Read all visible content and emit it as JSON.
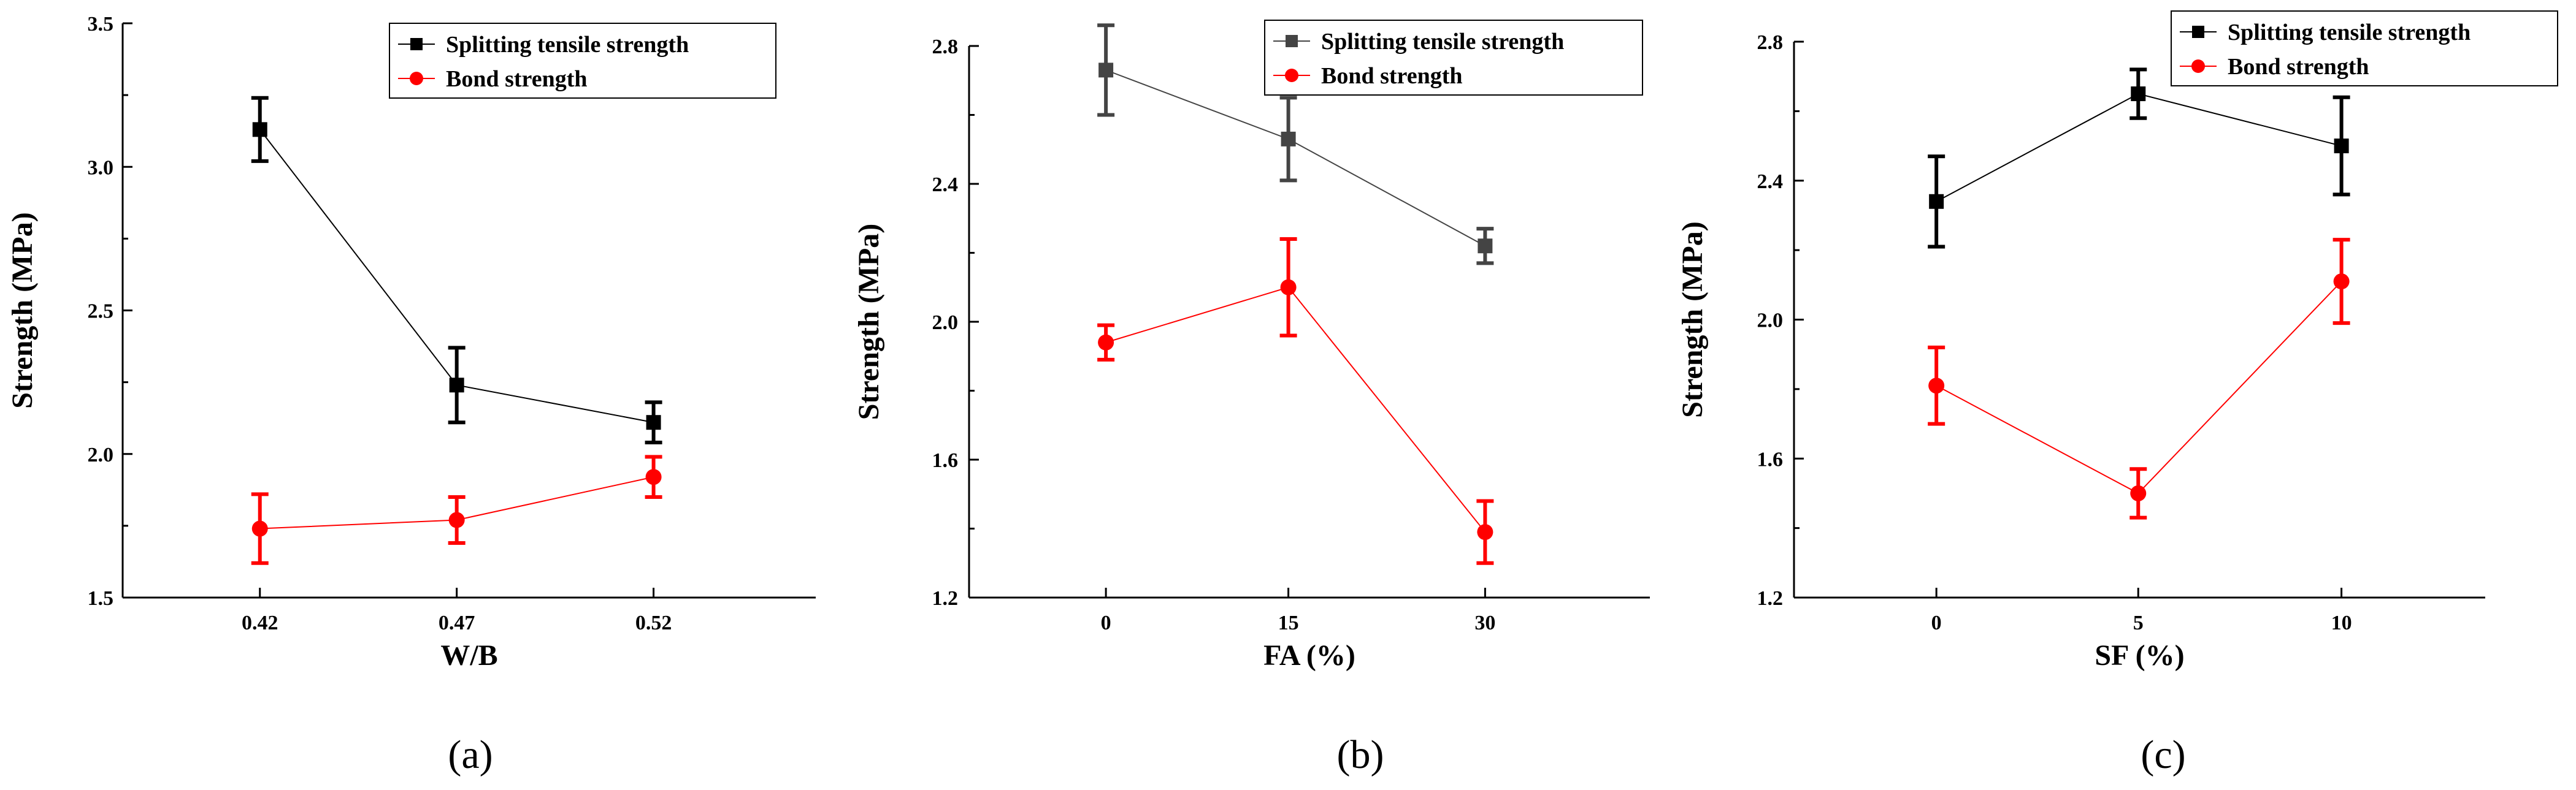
{
  "chart_data": [
    {
      "type": "line",
      "caption": "(a)",
      "xlabel": "W/B",
      "ylabel": "Strength  (MPa)",
      "categories": [
        "0.42",
        "0.47",
        "0.52"
      ],
      "ylim": [
        1.5,
        3.5
      ],
      "yticks": [
        "1.5",
        "2.0",
        "2.5",
        "3.0",
        "3.5"
      ],
      "legend_position": "top-right",
      "series": [
        {
          "name": "Splitting tensile strength",
          "color": "#000000",
          "marker": "square",
          "values": [
            3.13,
            2.24,
            2.11
          ],
          "errors": [
            0.11,
            0.13,
            0.07
          ]
        },
        {
          "name": "Bond strength",
          "color": "#ff0000",
          "marker": "circle",
          "values": [
            1.74,
            1.77,
            1.92
          ],
          "errors": [
            0.12,
            0.08,
            0.07
          ]
        }
      ]
    },
    {
      "type": "line",
      "caption": "(b)",
      "xlabel": "FA  (%)",
      "ylabel": "Strength (MPa)",
      "categories": [
        "0",
        "15",
        "30"
      ],
      "ylim": [
        1.2,
        2.8
      ],
      "yticks": [
        "1.2",
        "1.6",
        "2.0",
        "2.4",
        "2.8"
      ],
      "legend_position": "top-right",
      "series": [
        {
          "name": "Splitting tensile strength",
          "color": "#444444",
          "marker": "square",
          "values": [
            2.73,
            2.53,
            2.22
          ],
          "errors": [
            0.13,
            0.12,
            0.05
          ]
        },
        {
          "name": "Bond strength",
          "color": "#ff0000",
          "marker": "circle",
          "values": [
            1.94,
            2.1,
            1.39
          ],
          "errors": [
            0.05,
            0.14,
            0.09
          ]
        }
      ]
    },
    {
      "type": "line",
      "caption": "(c)",
      "xlabel": "SF  (%)",
      "ylabel": "Strength  (MPa)",
      "categories": [
        "0",
        "5",
        "10"
      ],
      "ylim": [
        1.2,
        2.8
      ],
      "yticks": [
        "1.2",
        "1.6",
        "2.0",
        "2.4",
        "2.8"
      ],
      "legend_position": "top-right",
      "series": [
        {
          "name": "Splitting tensile strength",
          "color": "#000000",
          "marker": "square",
          "values": [
            2.34,
            2.65,
            2.5
          ],
          "errors": [
            0.13,
            0.07,
            0.14
          ]
        },
        {
          "name": "Bond strength",
          "color": "#ff0000",
          "marker": "circle",
          "values": [
            1.81,
            1.5,
            2.11
          ],
          "errors": [
            0.11,
            0.07,
            0.12
          ]
        }
      ]
    }
  ]
}
